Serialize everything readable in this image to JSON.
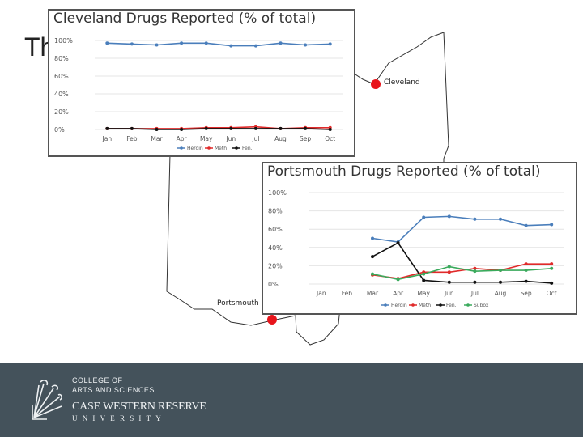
{
  "slide": {
    "title": "Th",
    "city_labels": {
      "cleveland": "Cleveland",
      "portsmouth": "Portsmouth"
    },
    "colors": {
      "city_marker": "#e8141b",
      "footer_bg": "#44525b",
      "map_outline": "#333333"
    }
  },
  "footer": {
    "logo_lines": [
      "COLLEGE OF",
      "ARTS AND SCIENCES",
      "CASE WESTERN RESERVE",
      "UNIVERSITY"
    ]
  },
  "chart_data": [
    {
      "type": "line",
      "title": "Cleveland Drugs Reported (% of total)",
      "xlabel": "",
      "ylabel": "",
      "categories": [
        "Jan",
        "Feb",
        "Mar",
        "Apr",
        "May",
        "Jun",
        "Jul",
        "Aug",
        "Sep",
        "Oct"
      ],
      "y_ticks": [
        "100%",
        "80%",
        "60%",
        "40%",
        "20%",
        "0%"
      ],
      "ylim": [
        0,
        100
      ],
      "grid": true,
      "legend_position": "bottom",
      "series": [
        {
          "name": "Heroin",
          "color": "#4a7ebb",
          "values": [
            97,
            96,
            95,
            97,
            97,
            94,
            94,
            97,
            95,
            96
          ]
        },
        {
          "name": "Meth",
          "color": "#e02a2a",
          "values": [
            1,
            1,
            1,
            1,
            2,
            2,
            3,
            1,
            2,
            2
          ]
        },
        {
          "name": "Fen.",
          "color": "#111111",
          "values": [
            1,
            1,
            0,
            0,
            1,
            1,
            1,
            1,
            1,
            0
          ]
        }
      ]
    },
    {
      "type": "line",
      "title": "Portsmouth Drugs Reported (% of total)",
      "xlabel": "",
      "ylabel": "",
      "categories": [
        "Jan",
        "Feb",
        "Mar",
        "Apr",
        "May",
        "Jun",
        "Jul",
        "Aug",
        "Sep",
        "Oct"
      ],
      "y_ticks": [
        "100%",
        "80%",
        "60%",
        "40%",
        "20%",
        "0%"
      ],
      "ylim": [
        0,
        100
      ],
      "grid": true,
      "legend_position": "bottom",
      "series": [
        {
          "name": "Heroin",
          "color": "#4a7ebb",
          "values": [
            null,
            null,
            50,
            46,
            73,
            74,
            71,
            71,
            64,
            65
          ]
        },
        {
          "name": "Meth",
          "color": "#e02a2a",
          "values": [
            null,
            null,
            10,
            6,
            13,
            13,
            17,
            15,
            22,
            22
          ]
        },
        {
          "name": "Fen.",
          "color": "#111111",
          "values": [
            null,
            null,
            30,
            45,
            4,
            2,
            2,
            2,
            3,
            1
          ]
        },
        {
          "name": "Subox",
          "color": "#3aaa5c",
          "values": [
            null,
            null,
            11,
            5,
            11,
            19,
            14,
            15,
            15,
            17
          ]
        }
      ]
    }
  ]
}
